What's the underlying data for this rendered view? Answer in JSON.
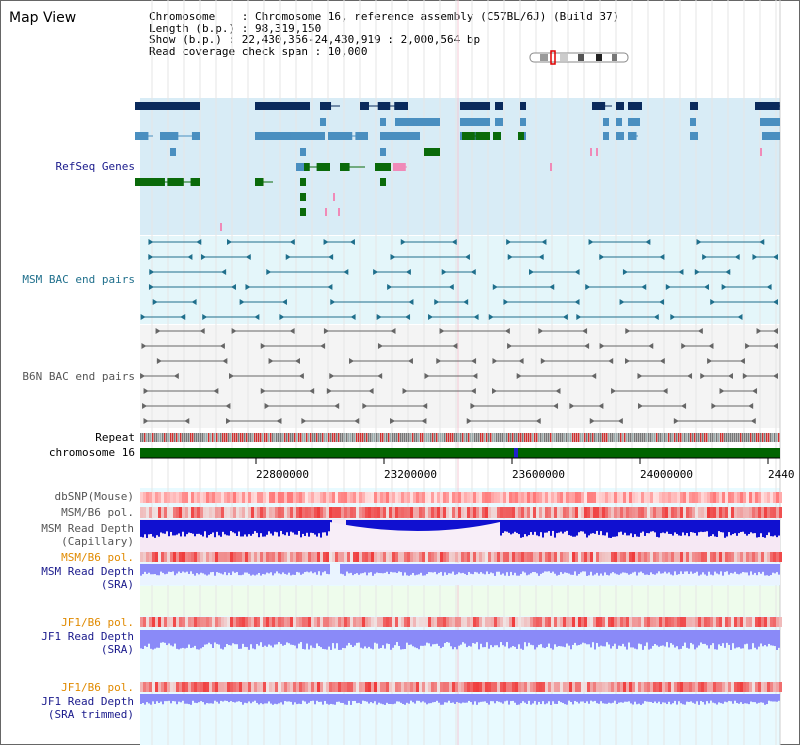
{
  "app": {
    "title": "Map View"
  },
  "info": {
    "chromosome_line": "Chromosome    : Chromosome 16, reference assembly (C57BL/6J) (Build 37)",
    "length_line": "Length (b.p.) : 98,319,150",
    "show_line": "Show (b.p.) : 22,430,356-24,430,919 : 2,000,564 bp",
    "coverage_line": "Read coverage check span : 10,000"
  },
  "tracks": {
    "refseq_label": "RefSeq Genes",
    "msm_bac_label": "MSM BAC end pairs",
    "b6n_bac_label": "B6N BAC end pairs",
    "repeat_label": "Repeat",
    "chromosome_label": "chromosome 16",
    "dbsnp_label": "dbSNP(Mouse)",
    "msm_b6_pol_label": "MSM/B6 pol.",
    "msm_read_depth_cap_1": "MSM Read Depth",
    "msm_read_depth_cap_2": "(Capillary)",
    "msm_b6_pol2_label": "MSM/B6 pol.",
    "msm_read_depth_sra_1": "MSM Read Depth",
    "msm_read_depth_sra_2": "(SRA)",
    "jf1_b6_pol_label": "JF1/B6 pol.",
    "jf1_read_depth_sra_1": "JF1 Read Depth",
    "jf1_read_depth_sra_2": "(SRA)",
    "jf1_b6_pol2_label": "JF1/B6 pol.",
    "jf1_read_depth_trim_1": "JF1 Read Depth",
    "jf1_read_depth_trim_2": "(SRA trimmed)"
  },
  "axis": {
    "ticks": [
      "22800000",
      "23200000",
      "23600000",
      "24000000",
      "2440"
    ]
  },
  "colors": {
    "gene_dark": "#0a2a5c",
    "gene_mid": "#4a8fc0",
    "gene_green": "#0a6a0a",
    "gene_pink": "#f08ab8",
    "refseq_bg": "#d8ecf6",
    "msm_bg": "#e4f6fa",
    "b6n_bg": "#f4f4f4",
    "depth_blue": "#1010d0",
    "depth_lavender": "#8a8af8",
    "chromosome_green": "#006400"
  }
}
